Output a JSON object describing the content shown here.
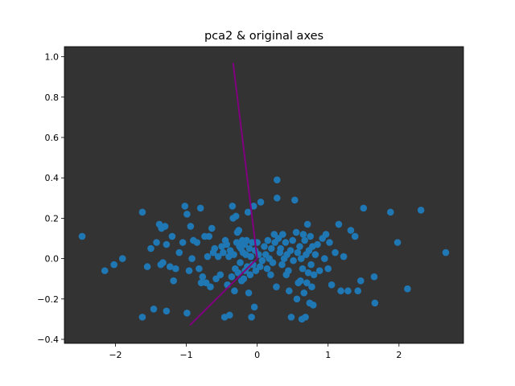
{
  "chart_data": {
    "type": "scatter",
    "title": "pca2 & original axes",
    "xlabel": "",
    "ylabel": "",
    "xlim": [
      -2.72,
      2.91
    ],
    "ylim": [
      -0.42,
      1.05
    ],
    "xticks": [
      -2,
      -1,
      0,
      1,
      2
    ],
    "yticks": [
      -0.4,
      -0.2,
      0.0,
      0.2,
      0.4,
      0.6,
      0.8,
      1.0
    ],
    "xtick_labels": [
      "−2",
      "−1",
      "0",
      "1",
      "2"
    ],
    "ytick_labels": [
      "−0.4",
      "−0.2",
      "0.0",
      "0.2",
      "0.4",
      "0.6",
      "0.8",
      "1.0"
    ],
    "grid": false,
    "colors": {
      "background": "#333333",
      "points": "#1f77b4",
      "axes_lines": "#800080"
    },
    "axis_lines": [
      {
        "name": "original-axis-1",
        "from": [
          0,
          0
        ],
        "to": [
          -0.34,
          0.97
        ]
      },
      {
        "name": "original-axis-2",
        "from": [
          0,
          0
        ],
        "to": [
          -0.95,
          -0.33
        ]
      }
    ],
    "points": [
      [
        -2.47,
        0.11
      ],
      [
        -2.15,
        -0.06
      ],
      [
        -2.02,
        -0.03
      ],
      [
        -1.9,
        0.0
      ],
      [
        -1.62,
        0.23
      ],
      [
        -1.62,
        -0.29
      ],
      [
        -1.55,
        -0.04
      ],
      [
        -1.5,
        0.05
      ],
      [
        -1.46,
        -0.25
      ],
      [
        -1.42,
        0.08
      ],
      [
        -1.38,
        0.17
      ],
      [
        -1.36,
        -0.03
      ],
      [
        -1.35,
        0.15
      ],
      [
        -1.33,
        -0.02
      ],
      [
        -1.3,
        0.16
      ],
      [
        -1.28,
        0.07
      ],
      [
        -1.28,
        -0.26
      ],
      [
        -1.23,
        -0.04
      ],
      [
        -1.2,
        0.11
      ],
      [
        -1.18,
        -0.11
      ],
      [
        -1.15,
        -0.05
      ],
      [
        -1.1,
        0.03
      ],
      [
        -1.05,
        0.08
      ],
      [
        -1.02,
        0.26
      ],
      [
        -0.99,
        0.22
      ],
      [
        -0.99,
        -0.27
      ],
      [
        -0.96,
        -0.06
      ],
      [
        -0.94,
        0.16
      ],
      [
        -0.92,
        0.0
      ],
      [
        -0.9,
        0.09
      ],
      [
        -0.85,
        0.08
      ],
      [
        -0.82,
        -0.05
      ],
      [
        -0.8,
        0.25
      ],
      [
        -0.79,
        -0.12
      ],
      [
        -0.77,
        -0.09
      ],
      [
        -0.74,
        0.11
      ],
      [
        -0.72,
        -0.12
      ],
      [
        -0.7,
        0.01
      ],
      [
        -0.68,
        0.11
      ],
      [
        -0.66,
        -0.14
      ],
      [
        -0.64,
        0.15
      ],
      [
        -0.62,
        0.03
      ],
      [
        -0.6,
        0.05
      ],
      [
        -0.58,
        -0.1
      ],
      [
        -0.55,
        0.01
      ],
      [
        -0.52,
        -0.08
      ],
      [
        -0.5,
        0.06
      ],
      [
        -0.48,
        0.03
      ],
      [
        -0.46,
        -0.29
      ],
      [
        -0.45,
        0.09
      ],
      [
        -0.43,
        0.07
      ],
      [
        -0.42,
        -0.13
      ],
      [
        -0.4,
        0.01
      ],
      [
        -0.39,
        -0.28
      ],
      [
        -0.38,
        0.04
      ],
      [
        -0.36,
        -0.09
      ],
      [
        -0.35,
        0.26
      ],
      [
        -0.34,
        0.2
      ],
      [
        -0.33,
        0.02
      ],
      [
        -0.32,
        -0.16
      ],
      [
        -0.31,
        -0.05
      ],
      [
        -0.3,
        0.21
      ],
      [
        -0.29,
        0.08
      ],
      [
        -0.28,
        0.13
      ],
      [
        -0.27,
        -0.07
      ],
      [
        -0.26,
        0.14
      ],
      [
        -0.25,
        0.06
      ],
      [
        -0.24,
        -0.02
      ],
      [
        -0.23,
        0.05
      ],
      [
        -0.22,
        -0.11
      ],
      [
        -0.21,
        0.09
      ],
      [
        -0.2,
        0.03
      ],
      [
        -0.19,
        -0.1
      ],
      [
        -0.18,
        0.07
      ],
      [
        -0.17,
        -0.06
      ],
      [
        -0.16,
        0.02
      ],
      [
        -0.15,
        0.09
      ],
      [
        -0.14,
        -0.04
      ],
      [
        -0.13,
        0.23
      ],
      [
        -0.12,
        -0.17
      ],
      [
        -0.11,
        0.05
      ],
      [
        -0.1,
        -0.08
      ],
      [
        -0.09,
        0.01
      ],
      [
        -0.08,
        -0.29
      ],
      [
        -0.07,
        0.08
      ],
      [
        -0.06,
        -0.03
      ],
      [
        -0.05,
        0.26
      ],
      [
        -0.04,
        -0.24
      ],
      [
        -0.03,
        0.04
      ],
      [
        -0.02,
        -0.06
      ],
      [
        0.0,
        0.08
      ],
      [
        0.02,
        0.02
      ],
      [
        0.04,
        -0.04
      ],
      [
        0.05,
        0.28
      ],
      [
        0.07,
        -0.01
      ],
      [
        0.1,
        0.06
      ],
      [
        0.12,
        0.02
      ],
      [
        0.14,
        -0.05
      ],
      [
        0.15,
        0.09
      ],
      [
        0.17,
        0.0
      ],
      [
        0.19,
        -0.08
      ],
      [
        0.2,
        0.05
      ],
      [
        0.22,
        -0.02
      ],
      [
        0.24,
        0.12
      ],
      [
        0.25,
        0.08
      ],
      [
        0.27,
        -0.14
      ],
      [
        0.28,
        0.39
      ],
      [
        0.28,
        0.3
      ],
      [
        0.3,
        0.1
      ],
      [
        0.32,
        0.03
      ],
      [
        0.33,
        0.05
      ],
      [
        0.35,
        -0.03
      ],
      [
        0.36,
        0.12
      ],
      [
        0.38,
        0.0
      ],
      [
        0.4,
        0.08
      ],
      [
        0.41,
        -0.08
      ],
      [
        0.42,
        0.02
      ],
      [
        0.44,
        -0.06
      ],
      [
        0.45,
        -0.16
      ],
      [
        0.47,
        0.04
      ],
      [
        0.48,
        -0.29
      ],
      [
        0.5,
        0.09
      ],
      [
        0.51,
        -0.01
      ],
      [
        0.53,
        0.29
      ],
      [
        0.55,
        0.13
      ],
      [
        0.56,
        -0.2
      ],
      [
        0.57,
        0.03
      ],
      [
        0.58,
        -0.12
      ],
      [
        0.6,
        0.06
      ],
      [
        0.61,
        -0.11
      ],
      [
        0.62,
        0.0
      ],
      [
        0.63,
        -0.3
      ],
      [
        0.64,
        -0.05
      ],
      [
        0.65,
        0.12
      ],
      [
        0.66,
        -0.17
      ],
      [
        0.67,
        0.09
      ],
      [
        0.68,
        -0.29
      ],
      [
        0.69,
        0.02
      ],
      [
        0.7,
        -0.12
      ],
      [
        0.71,
        0.17
      ],
      [
        0.72,
        -0.07
      ],
      [
        0.73,
        0.04
      ],
      [
        0.74,
        -0.22
      ],
      [
        0.75,
        0.11
      ],
      [
        0.76,
        -0.03
      ],
      [
        0.77,
        -0.14
      ],
      [
        0.78,
        0.06
      ],
      [
        0.79,
        -0.23
      ],
      [
        0.8,
        -0.08
      ],
      [
        0.82,
        0.02
      ],
      [
        0.85,
        0.07
      ],
      [
        0.88,
        -0.06
      ],
      [
        0.92,
        0.1
      ],
      [
        0.95,
        0.0
      ],
      [
        0.97,
        0.12
      ],
      [
        1.0,
        -0.05
      ],
      [
        1.02,
        0.08
      ],
      [
        1.05,
        -0.13
      ],
      [
        1.1,
        0.03
      ],
      [
        1.15,
        0.17
      ],
      [
        1.18,
        -0.16
      ],
      [
        1.22,
        0.01
      ],
      [
        1.28,
        -0.16
      ],
      [
        1.32,
        0.14
      ],
      [
        1.38,
        0.11
      ],
      [
        1.42,
        -0.16
      ],
      [
        1.46,
        -0.11
      ],
      [
        1.5,
        0.25
      ],
      [
        1.65,
        -0.09
      ],
      [
        1.66,
        -0.22
      ],
      [
        1.88,
        0.23
      ],
      [
        1.98,
        0.08
      ],
      [
        2.12,
        -0.15
      ],
      [
        2.31,
        0.24
      ],
      [
        2.66,
        0.03
      ]
    ]
  }
}
